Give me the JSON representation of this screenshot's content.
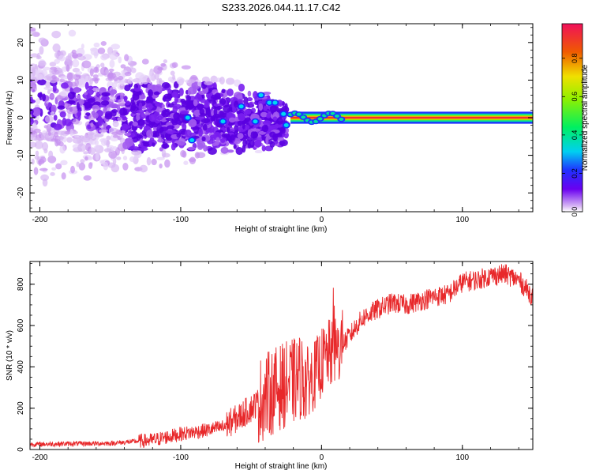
{
  "title": "S233.2026.044.11.17.C42",
  "colorbar": {
    "label": "Normalized spectral amplitude",
    "ticks": [
      "0.0",
      "0.2",
      "0.4",
      "0.6",
      "0.8"
    ],
    "tick_values": [
      0.0,
      0.2,
      0.4,
      0.6,
      0.8
    ],
    "range": [
      0,
      0.98
    ]
  },
  "chart_data": [
    {
      "type": "heatmap",
      "name": "spectrogram",
      "xlabel": "Height of straight line (km)",
      "ylabel": "Frequency (Hz)",
      "xlim": [
        -207,
        150
      ],
      "ylim": [
        -25,
        25
      ],
      "x_ticks": [
        -200,
        -100,
        0,
        100
      ],
      "x_tick_labels": [
        "-200",
        "-100",
        "0",
        "100"
      ],
      "y_ticks": [
        -20,
        -10,
        0,
        10,
        20
      ],
      "y_tick_labels": [
        "-20",
        "-10",
        "0",
        "10",
        "20"
      ],
      "dominant_line": {
        "x_start": -25,
        "x_end": 150,
        "frequency_hz": 0
      },
      "scatter_region": {
        "x_start": -207,
        "x_end": -25,
        "freq_spread_hz": 25
      }
    },
    {
      "type": "line",
      "name": "snr",
      "xlabel": "Height of straight line (km)",
      "ylabel": "SNR (10 * v/v)",
      "xlim": [
        -207,
        150
      ],
      "ylim": [
        0,
        910
      ],
      "x_ticks": [
        -200,
        -100,
        0,
        100
      ],
      "x_tick_labels": [
        "-200",
        "-100",
        "0",
        "100"
      ],
      "y_ticks": [
        0,
        200,
        400,
        600,
        800
      ],
      "y_tick_labels": [
        "0",
        "200",
        "400",
        "600",
        "800"
      ],
      "color": "#e8282a",
      "series": [
        {
          "name": "SNR",
          "x": [
            -207,
            -180,
            -150,
            -120,
            -100,
            -80,
            -70,
            -60,
            -50,
            -40,
            -30,
            -20,
            -15,
            -10,
            -5,
            0,
            5,
            10,
            15,
            20,
            25,
            30,
            40,
            50,
            60,
            70,
            80,
            90,
            100,
            110,
            120,
            130,
            140,
            150
          ],
          "y": [
            25,
            28,
            30,
            45,
            75,
            95,
            110,
            150,
            200,
            260,
            300,
            330,
            350,
            330,
            360,
            420,
            460,
            470,
            510,
            550,
            600,
            640,
            680,
            710,
            700,
            720,
            740,
            750,
            810,
            820,
            840,
            850,
            820,
            740
          ]
        }
      ]
    }
  ]
}
